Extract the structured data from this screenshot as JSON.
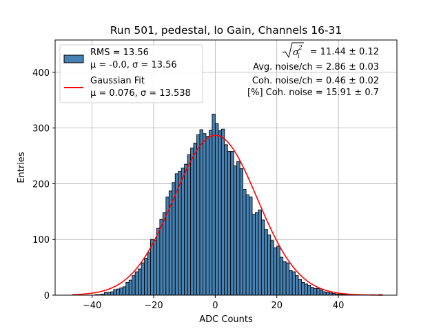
{
  "chart_data": {
    "type": "bar",
    "title": "Run 501, pedestal, lo Gain, Channels 16-31",
    "xlabel": "ADC Counts",
    "ylabel": "Entries",
    "xlim": [
      -52,
      59
    ],
    "ylim": [
      0,
      458
    ],
    "grid": true,
    "xticks": [
      -40,
      -20,
      0,
      20,
      40
    ],
    "xtick_labels": [
      "−40",
      "−20",
      "0",
      "20",
      "40"
    ],
    "yticks": [
      0,
      100,
      200,
      300,
      400
    ],
    "ytick_labels": [
      "0",
      "100",
      "200",
      "300",
      "400"
    ],
    "histogram": {
      "name": "RMS = 13.56",
      "label_line2": "μ = -0.0, σ = 13.56",
      "color": "#4682b4",
      "edgecolor": "#000000",
      "bin_start": -45,
      "bin_width": 1,
      "counts": [
        1,
        0,
        0,
        0,
        0,
        0,
        1,
        1,
        2,
        5,
        5,
        6,
        10,
        11,
        13,
        15,
        23,
        27,
        35,
        42,
        47,
        58,
        66,
        76,
        100,
        98,
        120,
        136,
        148,
        176,
        187,
        202,
        218,
        222,
        228,
        235,
        252,
        264,
        273,
        288,
        297,
        290,
        285,
        296,
        325,
        308,
        295,
        298,
        270,
        258,
        258,
        232,
        240,
        227,
        190,
        180,
        176,
        145,
        148,
        153,
        135,
        118,
        108,
        98,
        85,
        88,
        68,
        60,
        58,
        44,
        42,
        35,
        28,
        23,
        20,
        18,
        14,
        12,
        12,
        9,
        6,
        5,
        4,
        3,
        2,
        2,
        1,
        1,
        0,
        0,
        0,
        0,
        0,
        0,
        0,
        0,
        0,
        0,
        1
      ],
      "mu": -0.0,
      "sigma": 13.56,
      "rms": 13.56
    },
    "fit": {
      "name": "Gaussian Fit",
      "label_line2": "μ = 0.076, σ = 13.538",
      "color": "#ff0000",
      "mu": 0.076,
      "sigma": 13.538,
      "amplitude": 287,
      "x_range": [
        -46.5,
        54.5
      ]
    },
    "legend_position": "upper-left",
    "stats": {
      "sigma_sq_value": "= 11.44 ± 0.12",
      "avg_noise": "Avg. noise/ch = 2.86 ± 0.03",
      "coh_noise": "Coh. noise/ch = 0.46 ± 0.02",
      "coh_noise_pct": "[%] Coh. noise = 15.91 ± 0.7"
    }
  }
}
